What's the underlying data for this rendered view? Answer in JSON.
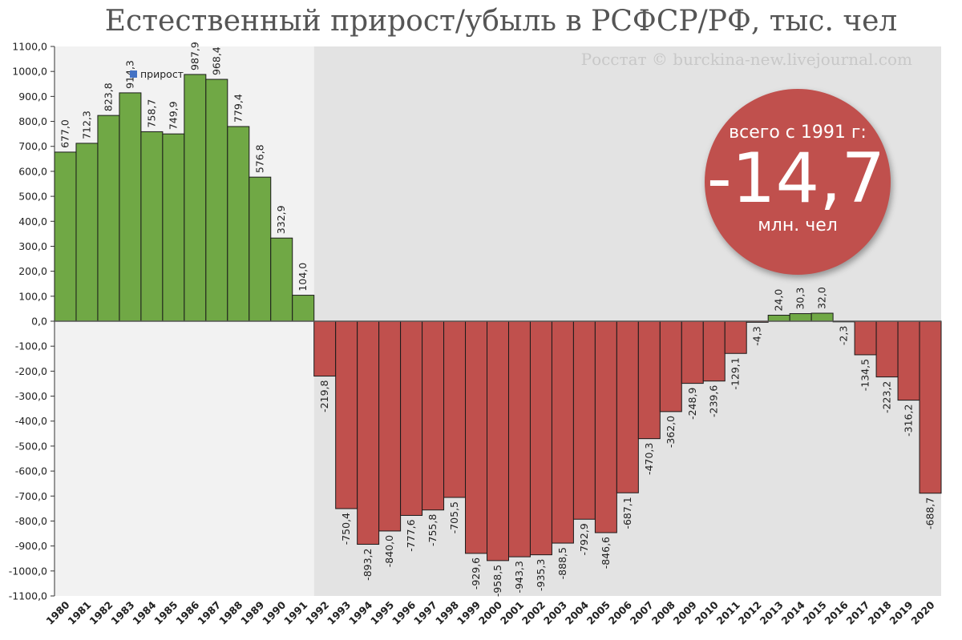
{
  "chart_data": {
    "type": "bar",
    "title": "Естественный прирост/убыль в РСФСР/РФ, тыс. чел",
    "credit": "Росстат © burckina-new.livejournal.com",
    "legend": {
      "label": "прирост",
      "placement": "top-left",
      "color": "#4472c4"
    },
    "ylim": [
      -1100,
      1100
    ],
    "ytick_step": 100,
    "grid": false,
    "colors": {
      "positive": "#70a845",
      "negative": "#c0504d",
      "bar_edge": "#1a1a1a",
      "bg_left": "#f2f2f2",
      "bg_right": "#e3e3e3"
    },
    "shaded_from_year": "1992",
    "categories": [
      "1980",
      "1981",
      "1982",
      "1983",
      "1984",
      "1985",
      "1986",
      "1987",
      "1988",
      "1989",
      "1990",
      "1991",
      "1992",
      "1993",
      "1994",
      "1995",
      "1996",
      "1997",
      "1998",
      "1999",
      "2000",
      "2001",
      "2002",
      "2003",
      "2004",
      "2005",
      "2006",
      "2007",
      "2008",
      "2009",
      "2010",
      "2011",
      "2012",
      "2013",
      "2014",
      "2015",
      "2016",
      "2017",
      "2018",
      "2019",
      "2020"
    ],
    "values": [
      677.0,
      712.3,
      823.8,
      914.3,
      758.7,
      749.9,
      987.9,
      968.4,
      779.4,
      576.8,
      332.9,
      104.0,
      -219.8,
      -750.4,
      -893.2,
      -840.0,
      -777.6,
      -755.8,
      -705.5,
      -929.6,
      -958.5,
      -943.3,
      -935.3,
      -888.5,
      -792.9,
      -846.6,
      -687.1,
      -470.3,
      -362.0,
      -248.9,
      -239.6,
      -129.1,
      -4.3,
      24.0,
      30.3,
      32.0,
      -2.3,
      -134.5,
      -223.2,
      -316.2,
      -688.7
    ],
    "value_labels": [
      "677,0",
      "712,3",
      "823,8",
      "914,3",
      "758,7",
      "749,9",
      "987,9",
      "968,4",
      "779,4",
      "576,8",
      "332,9",
      "104,0",
      "-219,8",
      "-750,4",
      "-893,2",
      "-840,0",
      "-777,6",
      "-755,8",
      "-705,5",
      "-929,6",
      "-958,5",
      "-943,3",
      "-935,3",
      "-888,5",
      "-792,9",
      "-846,6",
      "-687,1",
      "-470,3",
      "-362,0",
      "-248,9",
      "-239,6",
      "-129,1",
      "-4,3",
      "24,0",
      "30,3",
      "32,0",
      "-2,3",
      "-134,5",
      "-223,2",
      "-316,2",
      "-688,7"
    ],
    "annotation": {
      "top": "всего с 1991 г:",
      "value": "-14,7",
      "unit": "млн. чел",
      "color": "#c0504d"
    }
  }
}
